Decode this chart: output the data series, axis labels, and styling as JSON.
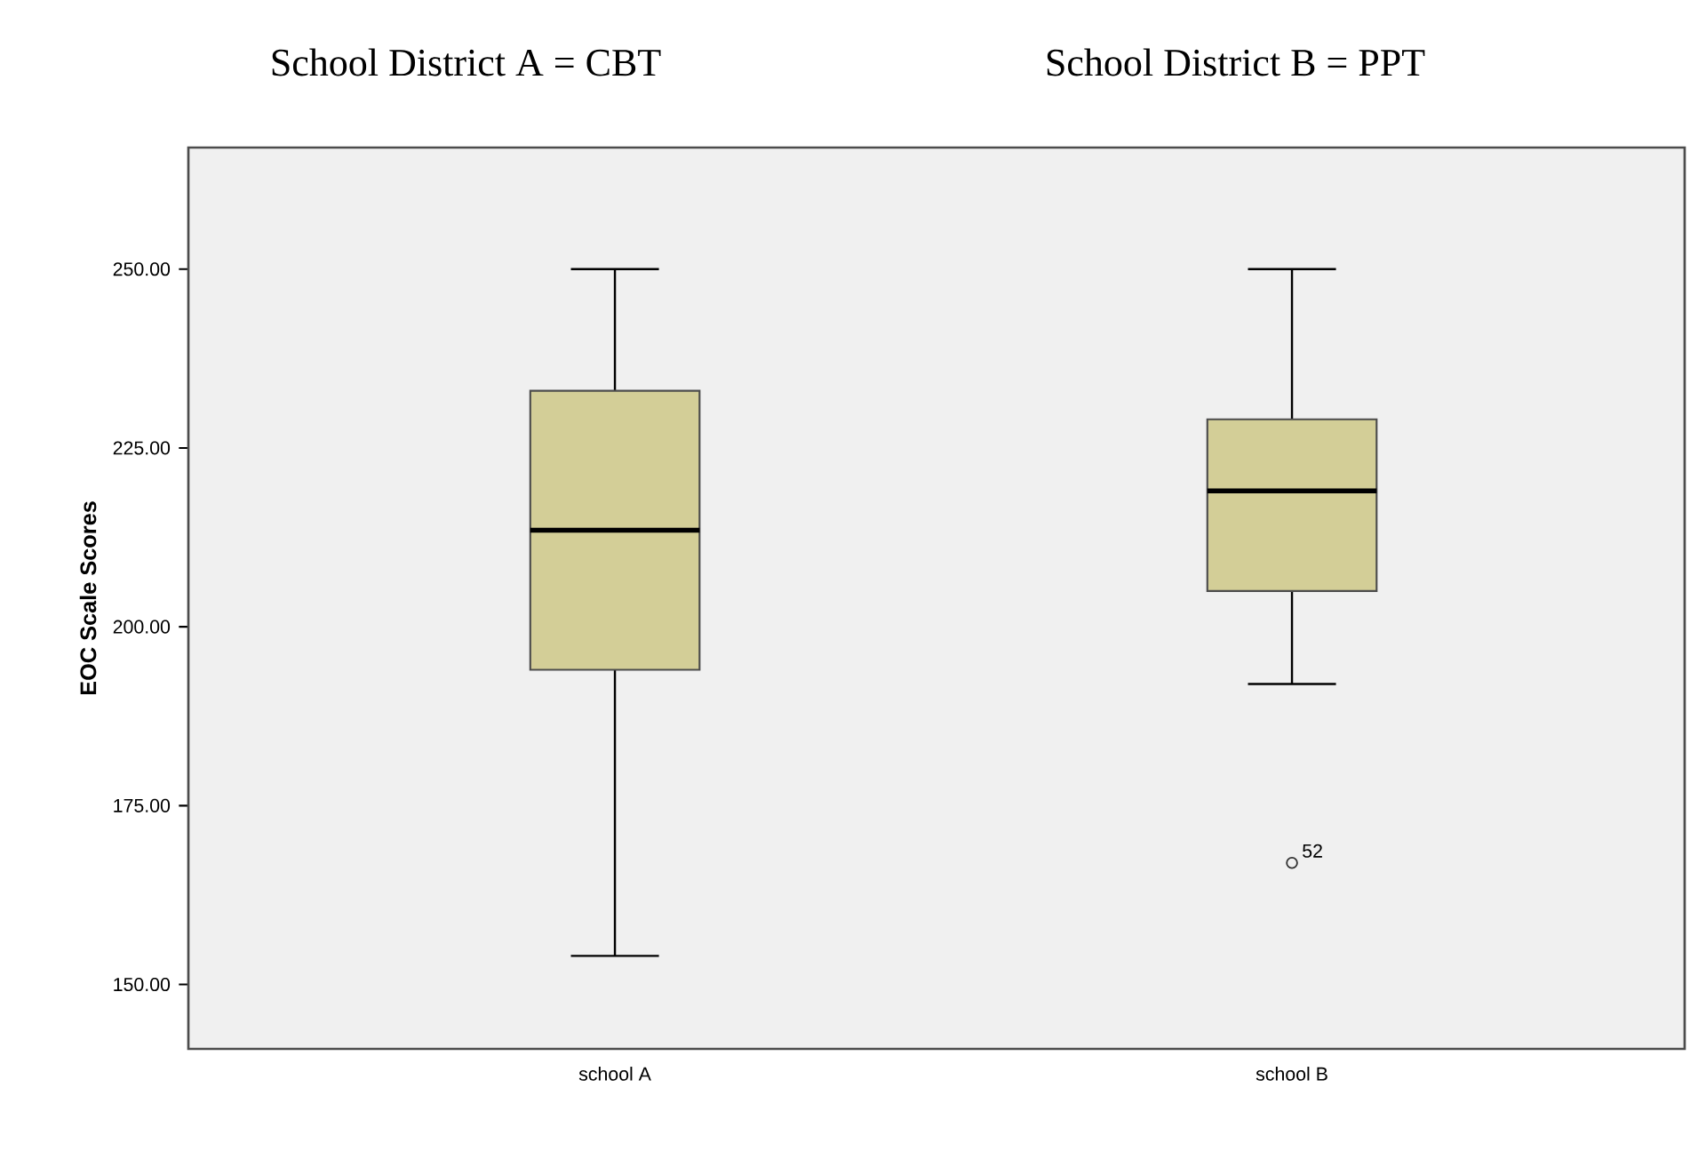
{
  "chart_data": {
    "type": "box",
    "annotations": [
      "School District A = CBT",
      "School District B = PPT",
      "52"
    ],
    "ylabel": "EOC Scale Scores",
    "categories": [
      "school A",
      "school B"
    ],
    "color": "#d3ce97",
    "boxes": [
      {
        "low": 154,
        "q1": 194,
        "median": 213.5,
        "q3": 233,
        "high": 250
      },
      {
        "low": 192,
        "q1": 205,
        "median": 219,
        "q3": 229,
        "high": 250,
        "outliers": [
          167
        ]
      }
    ],
    "ylim": [
      141,
      267
    ],
    "yticks": [
      {
        "value": 150,
        "label": "150.00"
      },
      {
        "value": 175,
        "label": "175.00"
      },
      {
        "value": 200,
        "label": "200.00"
      },
      {
        "value": 225,
        "label": "225.00"
      },
      {
        "value": 250,
        "label": "250.00"
      }
    ]
  }
}
